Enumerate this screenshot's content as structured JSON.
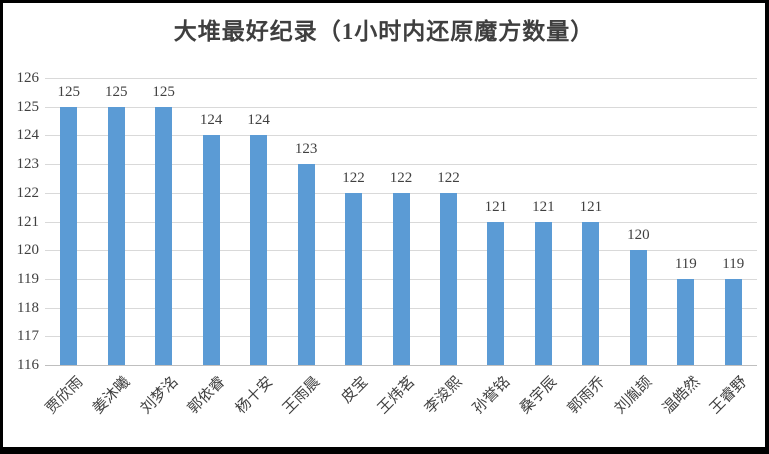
{
  "chart_data": {
    "type": "bar",
    "title": "大堆最好纪录（1小时内还原魔方数量）",
    "categories": [
      "贾欣雨",
      "姜沐曦",
      "刘梦洺",
      "郭依睿",
      "杨十安",
      "王雨晨",
      "皮宝",
      "王炜茗",
      "李浚熙",
      "孙誉铭",
      "桑宇辰",
      "郭雨乔",
      "刘胤颉",
      "温皓然",
      "王睿野"
    ],
    "values": [
      125,
      125,
      125,
      124,
      124,
      123,
      122,
      122,
      122,
      121,
      121,
      121,
      120,
      119,
      119
    ],
    "data_labels": [
      125,
      125,
      125,
      124,
      124,
      123,
      122,
      122,
      122,
      121,
      121,
      121,
      120,
      119,
      119
    ],
    "xlabel": "",
    "ylabel": "",
    "ylim": [
      116,
      126
    ],
    "yticks": [
      116,
      117,
      118,
      119,
      120,
      121,
      122,
      123,
      124,
      125,
      126
    ],
    "grid": true,
    "legend": null,
    "colors": {
      "bar": "#5B9BD5",
      "gridline": "#D9D9D9",
      "axis_line": "#BFBFBF",
      "text": "#404040",
      "title": "#3f3f3f",
      "frame_border": "#000000",
      "background": "#FFFFFF"
    }
  }
}
